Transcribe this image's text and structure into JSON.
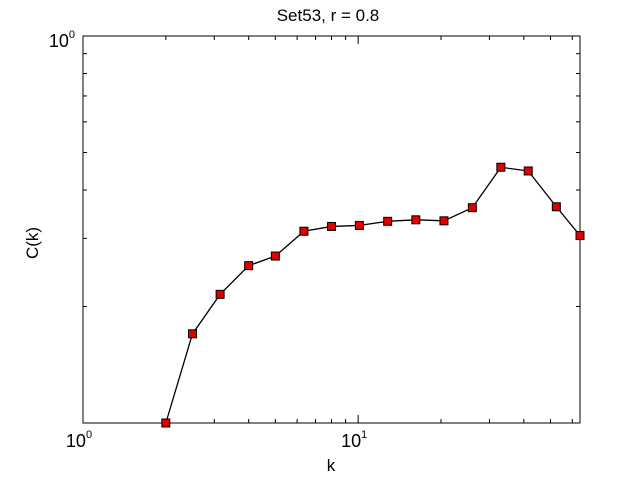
{
  "chart_data": {
    "type": "line",
    "title": "Set53, r = 0.8",
    "xlabel": "k",
    "ylabel": "C(k)",
    "xscale": "log",
    "yscale": "log",
    "xlim": [
      1,
      64
    ],
    "ylim": [
      0.1,
      1
    ],
    "x_ticks": [
      {
        "value": 1,
        "base": "10",
        "exp": "0"
      },
      {
        "value": 10,
        "base": "10",
        "exp": "1"
      }
    ],
    "y_ticks": [
      {
        "value": 1,
        "base": "10",
        "exp": "0"
      }
    ],
    "grid": false,
    "line_color": "#000000",
    "marker_color": "#e00000",
    "marker_edge": "#000000",
    "series": [
      {
        "x": [
          2,
          2.5,
          3.15,
          4,
          5,
          6.35,
          8,
          10.1,
          12.8,
          16.2,
          20.5,
          26,
          33,
          41.5,
          52.5,
          64
        ],
        "y": [
          0.1,
          0.17,
          0.215,
          0.255,
          0.27,
          0.313,
          0.322,
          0.324,
          0.332,
          0.335,
          0.333,
          0.36,
          0.458,
          0.448,
          0.362,
          0.305
        ]
      }
    ]
  }
}
